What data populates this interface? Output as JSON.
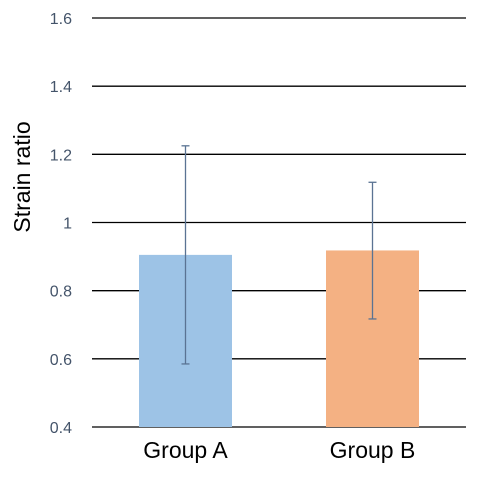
{
  "chart_data": {
    "type": "bar",
    "ylabel": "Strain ratio",
    "ylim": [
      0.4,
      1.6
    ],
    "yticks": [
      0.4,
      0.6,
      0.8,
      1,
      1.2,
      1.4,
      1.6
    ],
    "ytick_labels": [
      "0.4",
      "0.6",
      "0.8",
      "1",
      "1.2",
      "1.4",
      "1.6"
    ],
    "grid": true,
    "categories": [
      "Group A",
      "Group B"
    ],
    "values": [
      0.905,
      0.918
    ],
    "error_low": [
      0.585,
      0.717
    ],
    "error_high": [
      1.225,
      1.118
    ],
    "colors": [
      "#9dc3e6",
      "#f4b183"
    ],
    "error_bar_color": "#5a7393",
    "grid_color": "#000000"
  }
}
